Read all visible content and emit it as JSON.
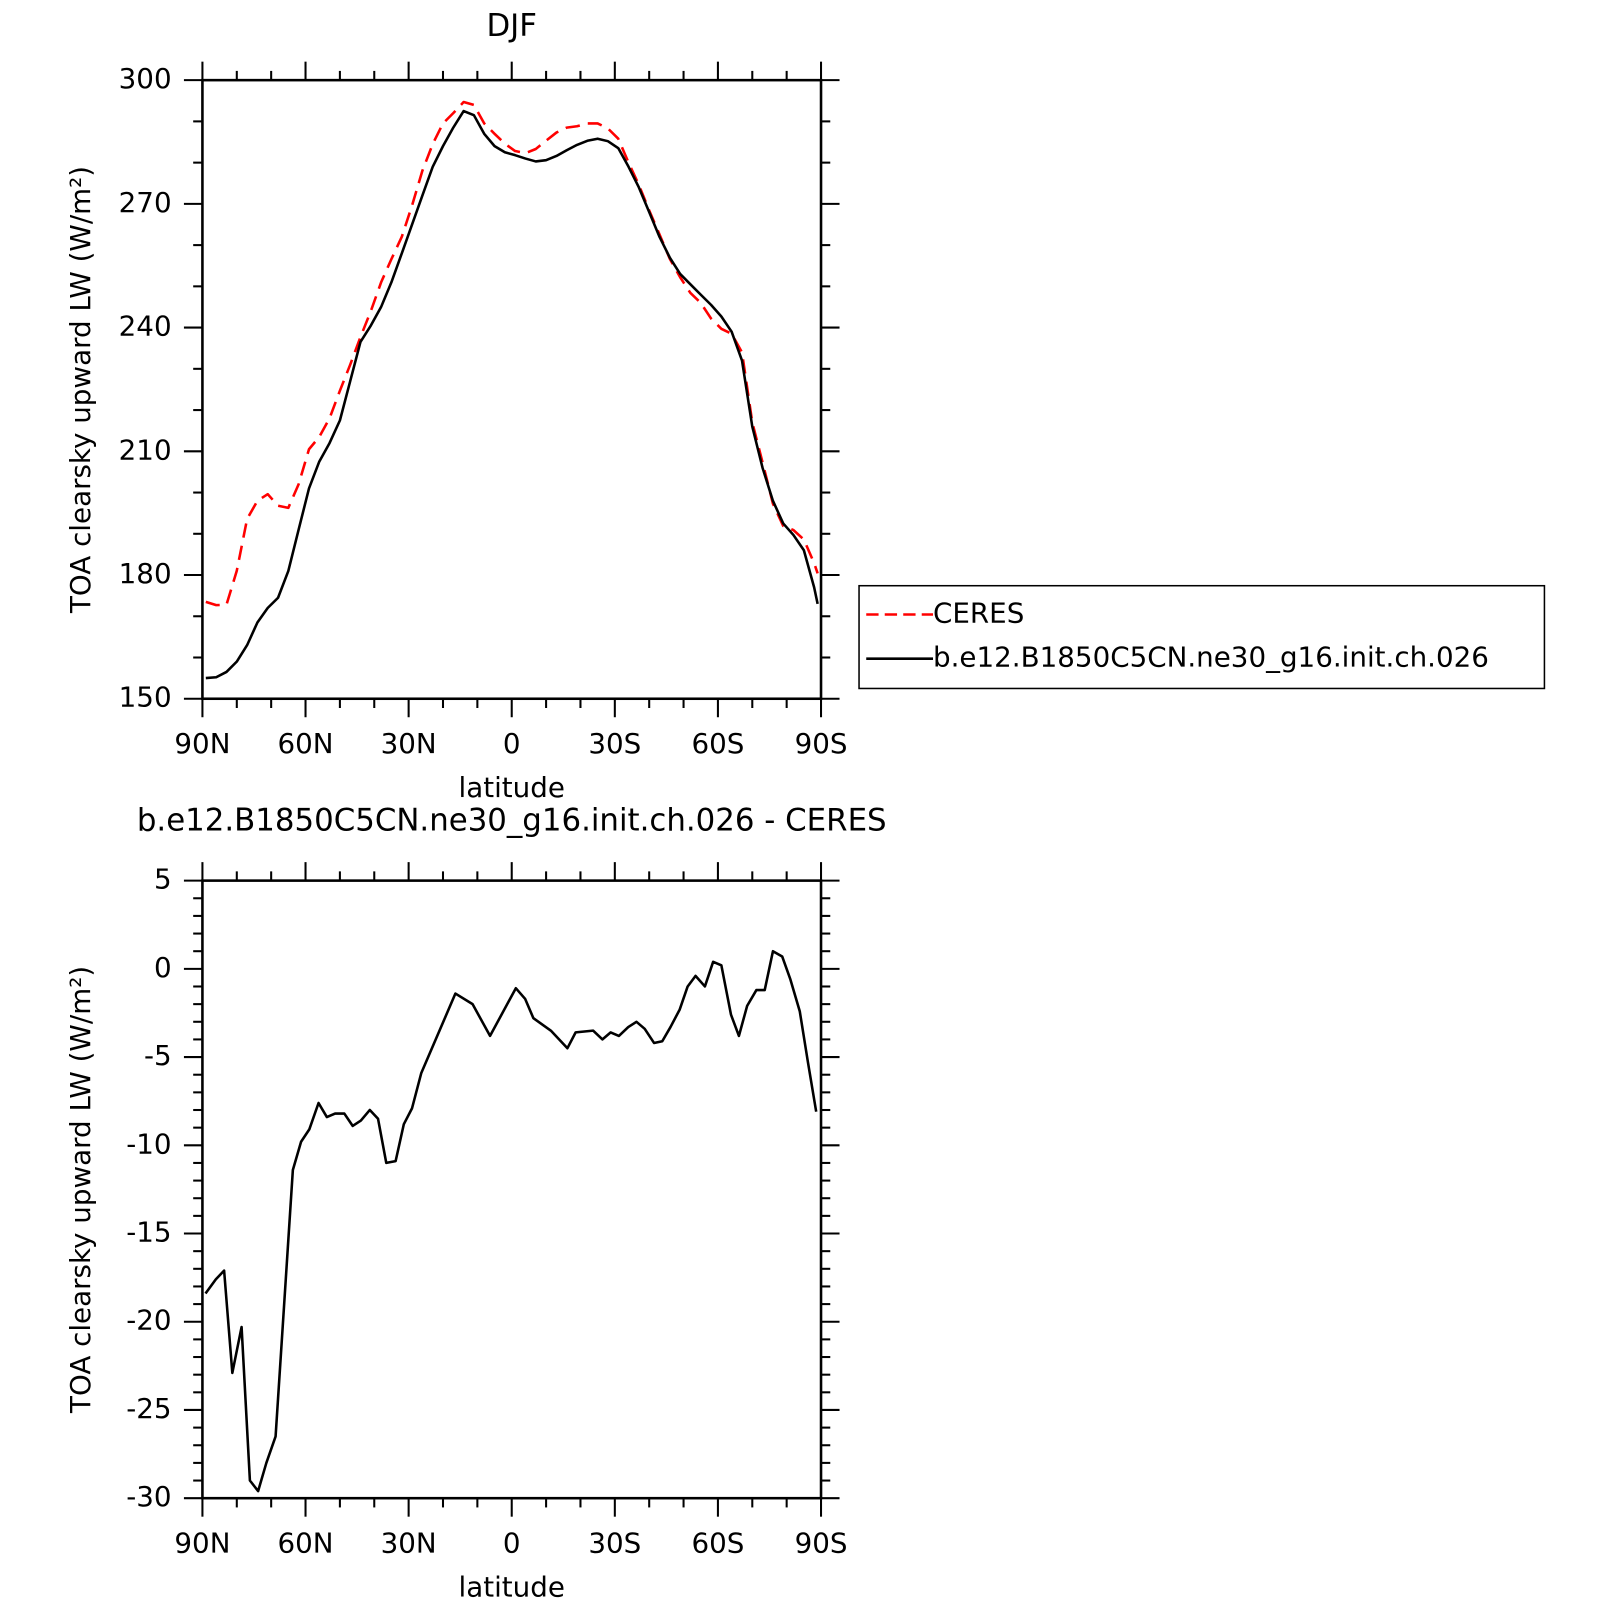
{
  "chart_data": [
    {
      "type": "line",
      "title": "DJF",
      "xlabel": "latitude",
      "ylabel": "TOA clearsky upward LW (W/m²)",
      "xlim": [
        90,
        -90
      ],
      "ylim": [
        150,
        300
      ],
      "xticks": [
        {
          "value": 90,
          "label": "90N"
        },
        {
          "value": 60,
          "label": "60N"
        },
        {
          "value": 30,
          "label": "30N"
        },
        0,
        {
          "value": -30,
          "label": "30S"
        },
        {
          "value": -60,
          "label": "60S"
        },
        {
          "value": -90,
          "label": "90S"
        }
      ],
      "yticks": [
        150,
        180,
        210,
        240,
        270,
        300
      ],
      "minor_xticks": [
        80,
        70,
        50,
        40,
        20,
        10,
        -10,
        -20,
        -40,
        -50,
        -70,
        -80
      ],
      "minor_yticks": [
        160,
        170,
        190,
        200,
        220,
        230,
        250,
        260,
        280,
        290
      ],
      "legend": "right",
      "x": [
        89,
        86,
        83,
        80,
        77,
        74,
        71,
        68,
        65,
        62,
        59,
        56,
        53,
        50,
        47,
        44,
        41,
        38,
        35,
        32,
        29,
        26,
        23,
        20,
        17,
        14,
        11,
        8,
        5,
        2,
        -1,
        -4,
        -7,
        -10,
        -13,
        -16,
        -19,
        -22,
        -25,
        -28,
        -31,
        -34,
        -37,
        -40,
        -43,
        -46,
        -49,
        -52,
        -55,
        -58,
        -61,
        -64,
        -67,
        -70,
        -73,
        -76,
        -79,
        -82,
        -85,
        -88,
        -89
      ],
      "series": [
        {
          "name": "CERES",
          "color": "#ff0000",
          "line_style": "dashed",
          "values": [
            173.5,
            172.7,
            172.8,
            181,
            193.6,
            198,
            199.6,
            196.8,
            196.3,
            202,
            210.5,
            213.5,
            218,
            224.7,
            231,
            237.7,
            244,
            251,
            256.6,
            262,
            269.6,
            278,
            284.5,
            289.5,
            292,
            294.7,
            294,
            289.5,
            287,
            284.6,
            282.8,
            282.3,
            283.3,
            285.3,
            287.3,
            288.5,
            288.8,
            289.5,
            289.5,
            288.3,
            285.8,
            280,
            274.6,
            268.4,
            262.6,
            256.7,
            252.2,
            248.4,
            246,
            242.2,
            239.7,
            238.5,
            234,
            217,
            207.3,
            197.3,
            191.9,
            190.9,
            188.6,
            182.9,
            180.4
          ]
        },
        {
          "name": "b.e12.B1850C5CN.ne30_g16.init.ch.026",
          "color": "#000000",
          "line_style": "solid",
          "values": [
            155,
            155.2,
            156.5,
            159,
            163,
            168.5,
            172,
            174.5,
            181,
            191,
            201,
            207.5,
            212,
            217.5,
            227,
            236.5,
            240.5,
            245,
            251,
            258,
            265,
            272,
            279,
            284,
            288.5,
            292.5,
            291.5,
            287,
            284,
            282.5,
            281.8,
            281,
            280.3,
            280.6,
            281.6,
            283,
            284.3,
            285.3,
            285.8,
            285.2,
            283.5,
            279,
            274,
            268,
            262,
            257,
            253,
            250.5,
            248,
            245.5,
            242.7,
            239,
            232,
            216,
            206,
            198,
            192.5,
            189.7,
            186,
            177,
            173
          ]
        }
      ]
    },
    {
      "type": "line",
      "title": "b.e12.B1850C5CN.ne30_g16.init.ch.026 - CERES",
      "xlabel": "latitude",
      "ylabel": "TOA clearsky upward LW (W/m²)",
      "xlim": [
        90,
        -90
      ],
      "ylim": [
        -30,
        5
      ],
      "xticks": [
        {
          "value": 90,
          "label": "90N"
        },
        {
          "value": 60,
          "label": "60N"
        },
        {
          "value": 30,
          "label": "30N"
        },
        0,
        {
          "value": -30,
          "label": "30S"
        },
        {
          "value": -60,
          "label": "60S"
        },
        {
          "value": -90,
          "label": "90S"
        }
      ],
      "yticks": [
        -30,
        -25,
        -20,
        -15,
        -10,
        -5,
        0,
        5
      ],
      "minor_xticks": [
        80,
        70,
        50,
        40,
        20,
        10,
        -10,
        -20,
        -40,
        -50,
        -70,
        -80
      ],
      "minor_yticks": [
        -29,
        -28,
        -27,
        -26,
        -24,
        -23,
        -22,
        -21,
        -19,
        -18,
        -17,
        -16,
        -14,
        -13,
        -12,
        -11,
        -9,
        -8,
        -7,
        -6,
        -4,
        -3,
        -2,
        -1,
        1,
        2,
        3,
        4
      ],
      "x": [
        89.1,
        86.1,
        83.7,
        81.3,
        78.6,
        76.2,
        73.8,
        71.4,
        68.7,
        63.7,
        61.3,
        58.9,
        56.2,
        53.8,
        51.4,
        48.7,
        46.3,
        43.9,
        41.3,
        38.9,
        36.5,
        33.8,
        31.4,
        29.0,
        26.3,
        16.4,
        11.4,
        6.3,
        -1.2,
        -3.9,
        -6.3,
        -11.4,
        -16.2,
        -18.6,
        -23.7,
        -26.4,
        -28.8,
        -31.2,
        -33.9,
        -36.3,
        -38.7,
        -41.4,
        -43.8,
        -46.2,
        -48.9,
        -51.2,
        -53.5,
        -56.2,
        -58.6,
        -61.0,
        -63.8,
        -66.1,
        -68.5,
        -71.2,
        -73.6,
        -76.0,
        -78.7,
        -81.1,
        -83.8,
        -86.2,
        -88.6
      ],
      "series": [
        {
          "color": "#000000",
          "line_style": "solid",
          "values": [
            -18.4,
            -17.6,
            -17.1,
            -22.9,
            -20.3,
            -29.0,
            -29.6,
            -28.0,
            -26.5,
            -11.4,
            -9.8,
            -9.1,
            -7.6,
            -8.4,
            -8.2,
            -8.2,
            -8.9,
            -8.6,
            -8.0,
            -8.5,
            -11.0,
            -10.9,
            -8.8,
            -7.9,
            -5.9,
            -1.4,
            -2.0,
            -3.8,
            -1.1,
            -1.7,
            -2.8,
            -3.5,
            -4.5,
            -3.6,
            -3.5,
            -4.0,
            -3.6,
            -3.8,
            -3.3,
            -3.0,
            -3.4,
            -4.2,
            -4.1,
            -3.3,
            -2.3,
            -1.0,
            -0.4,
            -1.0,
            0.4,
            0.2,
            -2.6,
            -3.8,
            -2.1,
            -1.2,
            -1.2,
            1.0,
            0.7,
            -0.6,
            -2.4,
            -5.3,
            -8.1
          ]
        }
      ]
    }
  ]
}
